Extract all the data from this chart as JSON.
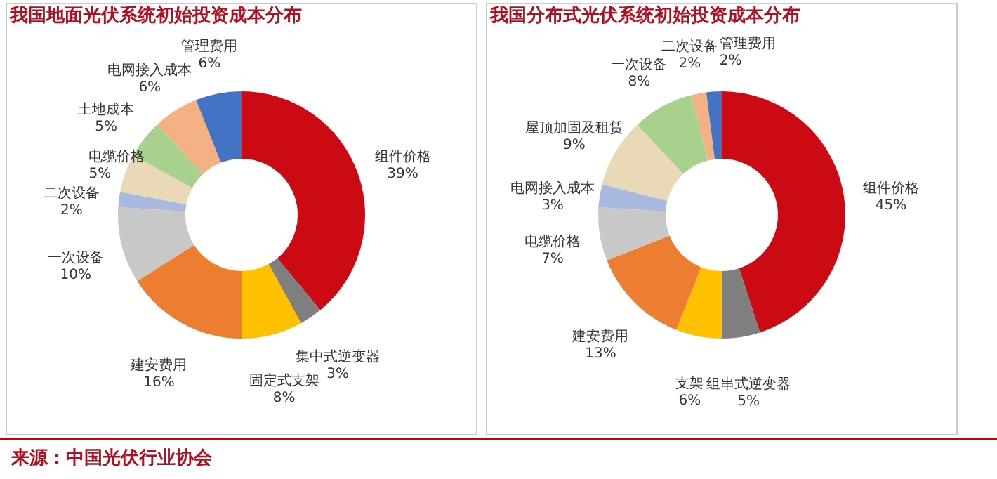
{
  "chart_data": [
    {
      "type": "donut",
      "title": "我国地面光伏系统初始投资成本分布",
      "categories": [
        "组件价格",
        "集中式逆变器",
        "固定式支架",
        "建安费用",
        "一次设备",
        "二次设备",
        "电缆价格",
        "土地成本",
        "电网接入成本",
        "管理费用"
      ],
      "values": [
        39,
        3,
        8,
        16,
        10,
        2,
        5,
        5,
        6,
        6
      ],
      "value_labels": [
        "39%",
        "3%",
        "8%",
        "16%",
        "10%",
        "2%",
        "5%",
        "5%",
        "6%",
        "6%"
      ],
      "colors": [
        "#cc0a14",
        "#7f7f7f",
        "#ffc000",
        "#ed7d31",
        "#c8c8c8",
        "#a9b9e0",
        "#e9d9b7",
        "#a9d18e",
        "#f4b183",
        "#4472c4"
      ],
      "legend": false,
      "annotations": [
        "来源：中国光伏行业协会"
      ]
    },
    {
      "type": "donut",
      "title": "我国分布式光伏系统初始投资成本分布",
      "categories": [
        "组件价格",
        "组串式逆变器",
        "支架",
        "建安费用",
        "电缆价格",
        "电网接入成本",
        "屋顶加固及租赁",
        "一次设备",
        "二次设备",
        "管理费用"
      ],
      "values": [
        45,
        5,
        6,
        13,
        7,
        3,
        9,
        8,
        2,
        2
      ],
      "value_labels": [
        "45%",
        "5%",
        "6%",
        "13%",
        "7%",
        "3%",
        "9%",
        "8%",
        "2%",
        "2%"
      ],
      "colors": [
        "#cc0a14",
        "#7f7f7f",
        "#ffc000",
        "#ed7d31",
        "#c8c8c8",
        "#a9b9e0",
        "#e9d9b7",
        "#a9d18e",
        "#f4b183",
        "#4472c4"
      ],
      "legend": false
    }
  ]
}
